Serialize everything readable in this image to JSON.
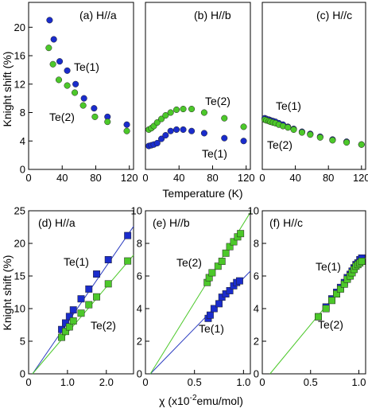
{
  "figure": {
    "top_ylabel": "Knight shift (%)",
    "top_xlabel": "Temperature (K)",
    "bottom_ylabel": "Knight shift (%)",
    "bottom_xlabel_prefix": "χ (x10",
    "bottom_xlabel_exp": "-2",
    "bottom_xlabel_suffix": "emu/mol)"
  },
  "colors": {
    "te1": "#1a2ccc",
    "te2": "#4cc82a",
    "fit_te1": "#2a3bc0",
    "fit_te2": "#4cc82a"
  },
  "chart_data": [
    {
      "type": "scatter",
      "title": "(a) H//a",
      "xlabel": "Temperature (K)",
      "ylabel": "Knight shift (%)",
      "xlim": [
        0,
        125
      ],
      "ylim": [
        0,
        23.5
      ],
      "xticks": [
        0,
        40,
        80,
        120
      ],
      "yticks": [
        0,
        4,
        8,
        12,
        16,
        20
      ],
      "marker": "circle",
      "series": [
        {
          "name": "Te(1)",
          "x": [
            25,
            30,
            37,
            46,
            56,
            66,
            78,
            94,
            117
          ],
          "y": [
            21.0,
            18.3,
            15.2,
            13.9,
            12.0,
            10.0,
            8.6,
            7.4,
            6.3
          ]
        },
        {
          "name": "Te(2)",
          "x": [
            24,
            29,
            36,
            46,
            55,
            65,
            79,
            94,
            117
          ],
          "y": [
            17.1,
            14.8,
            12.6,
            11.8,
            10.8,
            9.0,
            7.4,
            6.7,
            5.4
          ]
        }
      ],
      "annotations": [
        "Te(1)",
        "Te(2)"
      ]
    },
    {
      "type": "scatter",
      "title": "(b) H//b",
      "xlabel": "Temperature (K)",
      "ylabel": "",
      "xlim": [
        0,
        125
      ],
      "ylim": [
        0,
        23.5
      ],
      "xticks": [
        0,
        40,
        80,
        120
      ],
      "yticks": [],
      "marker": "circle",
      "series": [
        {
          "name": "Te(1)",
          "x": [
            4,
            7,
            10,
            14,
            19,
            24,
            30,
            37,
            45,
            55,
            70,
            94,
            117
          ],
          "y": [
            3.3,
            3.4,
            3.5,
            3.7,
            4.3,
            4.8,
            5.4,
            5.6,
            5.6,
            5.4,
            5.1,
            4.4,
            4.0
          ]
        },
        {
          "name": "Te(2)",
          "x": [
            4,
            7,
            10,
            14,
            19,
            24,
            30,
            37,
            45,
            55,
            70,
            94,
            117
          ],
          "y": [
            5.6,
            5.8,
            6.1,
            6.6,
            7.1,
            7.6,
            8.0,
            8.4,
            8.5,
            8.5,
            8.0,
            7.2,
            6.0
          ]
        }
      ],
      "annotations": [
        "Te(2)",
        "Te(1)"
      ]
    },
    {
      "type": "scatter",
      "title": "(c) H//c",
      "xlabel": "Temperature (K)",
      "ylabel": "",
      "xlim": [
        0,
        125
      ],
      "ylim": [
        0,
        23.5
      ],
      "xticks": [
        0,
        40,
        80,
        120
      ],
      "yticks": [],
      "marker": "circle",
      "series": [
        {
          "name": "Te(1)",
          "x": [
            3,
            5,
            8,
            10,
            13,
            16,
            20,
            25,
            31,
            38,
            48,
            58,
            70,
            85,
            102,
            120
          ],
          "y": [
            7.2,
            7.1,
            7.0,
            6.9,
            6.8,
            6.7,
            6.5,
            6.3,
            6.0,
            5.7,
            5.3,
            5.0,
            4.6,
            4.2,
            3.9,
            3.5
          ]
        },
        {
          "name": "Te(2)",
          "x": [
            3,
            5,
            8,
            10,
            13,
            16,
            20,
            25,
            31,
            38,
            48,
            58,
            70,
            85,
            102,
            120
          ],
          "y": [
            7.0,
            6.9,
            6.8,
            6.7,
            6.6,
            6.5,
            6.3,
            6.1,
            5.9,
            5.6,
            5.2,
            4.9,
            4.5,
            4.1,
            3.8,
            3.5
          ]
        }
      ],
      "annotations": [
        "Te(1)",
        "Te(2)"
      ]
    },
    {
      "type": "scatter",
      "title": "(d) H//a",
      "xlabel": "χ (x10^-2 emu/mol)",
      "ylabel": "Knight shift (%)",
      "xlim": [
        0,
        2.7
      ],
      "ylim": [
        0,
        25
      ],
      "xticks": [
        0,
        1.0,
        2.0
      ],
      "xticklabels": [
        "0",
        "1.0",
        "2.0"
      ],
      "yticks": [
        0,
        5,
        10,
        15,
        20,
        25
      ],
      "marker": "square",
      "series": [
        {
          "name": "Te(1)",
          "x": [
            0.85,
            0.95,
            1.05,
            1.15,
            1.35,
            1.55,
            1.75,
            2.05,
            2.55
          ],
          "y": [
            6.8,
            7.8,
            8.8,
            9.8,
            11.5,
            13.0,
            15.3,
            17.5,
            21.2
          ]
        },
        {
          "name": "Te(2)",
          "x": [
            0.85,
            0.95,
            1.05,
            1.15,
            1.35,
            1.55,
            1.75,
            2.05,
            2.55
          ],
          "y": [
            5.6,
            6.5,
            7.2,
            8.1,
            9.3,
            10.6,
            11.8,
            13.8,
            17.3
          ]
        }
      ],
      "fits": [
        {
          "name": "Te(1)",
          "x": [
            0.1,
            2.7
          ],
          "y": [
            0.0,
            22.6
          ]
        },
        {
          "name": "Te(2)",
          "x": [
            0.1,
            2.7
          ],
          "y": [
            0.0,
            18.2
          ]
        }
      ],
      "annotations": [
        "Te(1)",
        "Te(2)"
      ]
    },
    {
      "type": "scatter",
      "title": "(e) H//b",
      "xlabel": "χ (x10^-2 emu/mol)",
      "ylabel": "",
      "xlim": [
        0,
        1.07
      ],
      "ylim": [
        0,
        10
      ],
      "xticks": [
        0,
        0.5,
        1.0
      ],
      "xticklabels": [
        "0",
        "0.5",
        "1.0"
      ],
      "yticks": [
        0,
        2,
        4,
        6,
        8,
        10
      ],
      "marker": "square",
      "series": [
        {
          "name": "Te(1)",
          "x": [
            0.64,
            0.66,
            0.7,
            0.75,
            0.78,
            0.82,
            0.86,
            0.9,
            0.93,
            0.96
          ],
          "y": [
            3.4,
            3.6,
            4.0,
            4.3,
            4.7,
            4.9,
            5.1,
            5.4,
            5.6,
            5.7
          ]
        },
        {
          "name": "Te(2)",
          "x": [
            0.63,
            0.65,
            0.68,
            0.74,
            0.78,
            0.82,
            0.86,
            0.9,
            0.94,
            0.97
          ],
          "y": [
            5.6,
            5.9,
            6.2,
            6.6,
            6.9,
            7.4,
            7.8,
            8.1,
            8.4,
            8.6
          ]
        }
      ],
      "fits": [
        {
          "name": "Te(1)",
          "x": [
            0.05,
            1.07
          ],
          "y": [
            0.0,
            6.3
          ]
        },
        {
          "name": "Te(2)",
          "x": [
            0.05,
            1.07
          ],
          "y": [
            0.0,
            9.9
          ]
        }
      ],
      "annotations": [
        "Te(2)",
        "Te(1)"
      ]
    },
    {
      "type": "scatter",
      "title": "(f) H//c",
      "xlabel": "χ (x10^-2 emu/mol)",
      "ylabel": "",
      "xlim": [
        0,
        1.07
      ],
      "ylim": [
        0,
        10
      ],
      "xticks": [
        0,
        0.5,
        1.0
      ],
      "xticklabels": [
        "0",
        "0.5",
        "1.0"
      ],
      "yticks": [
        0,
        2,
        4,
        6,
        8,
        10
      ],
      "marker": "square",
      "series": [
        {
          "name": "Te(1)",
          "x": [
            0.58,
            0.66,
            0.72,
            0.77,
            0.81,
            0.85,
            0.88,
            0.91,
            0.93,
            0.95,
            0.97,
            0.99,
            1.01,
            1.03
          ],
          "y": [
            3.5,
            4.1,
            4.6,
            5.0,
            5.3,
            5.6,
            5.9,
            6.1,
            6.3,
            6.5,
            6.7,
            6.8,
            7.0,
            7.1
          ]
        },
        {
          "name": "Te(2)",
          "x": [
            0.58,
            0.66,
            0.72,
            0.77,
            0.81,
            0.85,
            0.88,
            0.91,
            0.93,
            0.95,
            0.97,
            0.99,
            1.01,
            1.03
          ],
          "y": [
            3.5,
            4.0,
            4.5,
            4.9,
            5.2,
            5.5,
            5.8,
            6.0,
            6.2,
            6.4,
            6.6,
            6.7,
            6.8,
            6.9
          ]
        }
      ],
      "fits": [
        {
          "name": "Te(2)",
          "x": [
            0.08,
            1.07
          ],
          "y": [
            0.0,
            7.1
          ]
        }
      ],
      "annotations": [
        "Te(1)",
        "Te(2)"
      ]
    }
  ]
}
